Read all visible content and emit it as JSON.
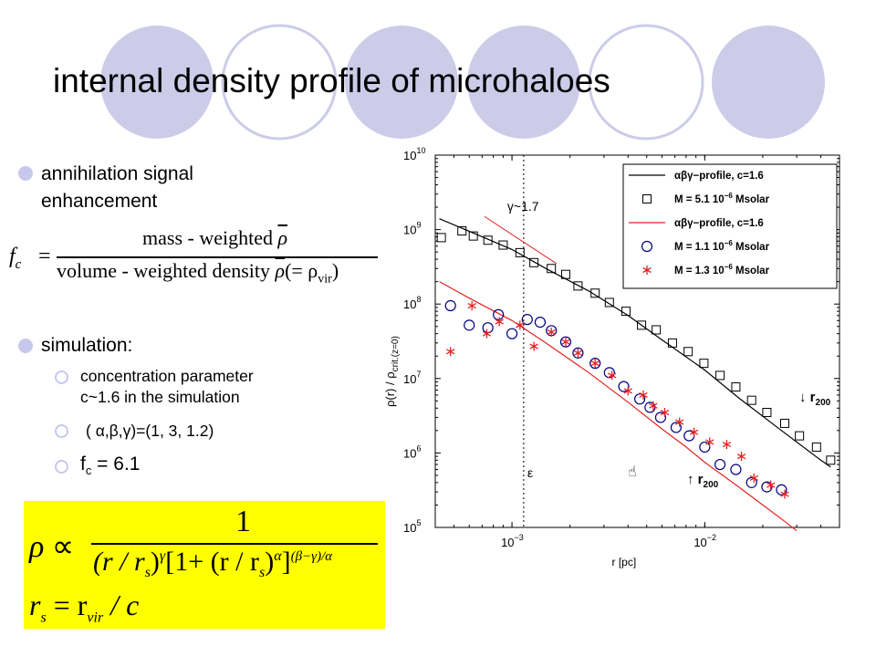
{
  "slide": {
    "title": "internal density profile of microhaloes",
    "bullets": {
      "annihilation_line1": "annihilation signal",
      "annihilation_line2": "enhancement",
      "simulation": "simulation:",
      "concentration_line1": "concentration parameter",
      "concentration_line2": "c~1.6 in the simulation",
      "alpha_beta_gamma": "( α,β,γ)=(1, 3, 1.2)",
      "fc_value_prefix": "f",
      "fc_value_sub": "c",
      "fc_value_rest": " = 6.1"
    },
    "fc_formula": {
      "lhs_main": "f",
      "lhs_sub": "c",
      "equals": "=",
      "numerator": "mass - weighted",
      "rho": "ρ",
      "denominator_text": "volume - weighted density",
      "denominator_paren": "(= ρ",
      "vir_sub": "vir",
      "close_paren": ")"
    },
    "profile_formula": {
      "rho": "ρ",
      "propto": "∝",
      "numerator": "1",
      "r_over_rs": "(r / r",
      "s_sub": "s",
      "close": ")",
      "gamma": "γ",
      "bracket": "[1+ (r / r",
      "alpha": "α",
      "close_bracket": "]",
      "exponent": "(β−γ)/α",
      "rs_line_lhs": "r",
      "rs_line_eq": " = r",
      "vir_sub": "vir",
      "rs_line_rest": " / c"
    },
    "colors": {
      "bullet_dot": "#c8c8ec",
      "deco_circle": "#cccce9",
      "highlight": "#ffff00",
      "red": "#e32222"
    }
  },
  "chart_data": {
    "type": "scatter",
    "xscale": "log",
    "yscale": "log",
    "xlabel": "r [pc]",
    "ylabel_main": "ρ(r) / ρ",
    "ylabel_sub": "crit.(z=0)",
    "xlim": [
      0.0004,
      0.05
    ],
    "ylim": [
      100000,
      10000000000
    ],
    "x_ticks": [
      {
        "base": "10",
        "exp": "−3",
        "value": 0.001
      },
      {
        "base": "10",
        "exp": "−2",
        "value": 0.01
      }
    ],
    "y_ticks": [
      {
        "base": "10",
        "exp": "10",
        "value": 10000000000
      },
      {
        "base": "10",
        "exp": "9",
        "value": 1000000000
      },
      {
        "base": "10",
        "exp": "8",
        "value": 100000000
      },
      {
        "base": "10",
        "exp": "7",
        "value": 10000000
      },
      {
        "base": "10",
        "exp": "6",
        "value": 1000000
      },
      {
        "base": "10",
        "exp": "5",
        "value": 100000
      }
    ],
    "grid": false,
    "legend": {
      "position": "top-right",
      "entries": [
        {
          "label": "αβγ−profile, c=1.6",
          "marker": "line",
          "color": "#000000"
        },
        {
          "label_prefix": "M = 5.1 10",
          "label_exp": "−6",
          "label_suffix": " Msolar",
          "marker": "square",
          "color": "#000000"
        },
        {
          "label": "αβγ−profile, c=1.6",
          "marker": "line",
          "color": "#e32222"
        },
        {
          "label_prefix": "M = 1.1 10",
          "label_exp": "−6",
          "label_suffix": " Msolar",
          "marker": "circle",
          "color": "#000080"
        },
        {
          "label_prefix": "M = 1.3 10",
          "label_exp": "−6",
          "label_suffix": " Msolar",
          "marker": "star",
          "color": "#e32222"
        }
      ]
    },
    "annotations": {
      "gamma_slope": "γ~1.7",
      "epsilon": "ε",
      "r200_prefix": "r",
      "r200_sub": "200",
      "arrow_down": "↓",
      "arrow_up": "↑",
      "epsilon_x": 0.00115,
      "slope_line": [
        [
          0.00072,
          1500000000
        ],
        [
          0.0017,
          350000000
        ]
      ]
    },
    "series": [
      {
        "name": "αβγ−profile, c=1.6",
        "kind": "line",
        "color": "#000000",
        "x": [
          0.00042,
          0.0006,
          0.001,
          0.0015,
          0.0025,
          0.004,
          0.006,
          0.01,
          0.015,
          0.025,
          0.04,
          0.045
        ],
        "y": [
          1400000000,
          950000000,
          540000000,
          300000000,
          150000000,
          70000000,
          33000000,
          13000000,
          5500000,
          2000000,
          800000,
          650000
        ]
      },
      {
        "name": "M = 5.1 10−6 Msolar",
        "kind": "marker",
        "marker": "square",
        "color": "#000000",
        "x": [
          0.00043,
          0.00055,
          0.00063,
          0.00075,
          0.0009,
          0.0011,
          0.0013,
          0.0016,
          0.0019,
          0.0022,
          0.0027,
          0.0032,
          0.0039,
          0.0047,
          0.0056,
          0.0068,
          0.0082,
          0.0099,
          0.012,
          0.0145,
          0.0175,
          0.021,
          0.026,
          0.031,
          0.038,
          0.045
        ],
        "y": [
          780000000,
          960000000,
          820000000,
          720000000,
          620000000,
          490000000,
          360000000,
          300000000,
          250000000,
          175000000,
          140000000,
          105000000,
          80000000,
          52000000,
          45000000,
          30000000,
          23000000,
          16000000,
          11000000,
          7700000,
          5100000,
          3500000,
          2500000,
          1700000,
          1200000,
          800000
        ]
      },
      {
        "name": "αβγ−profile, c=1.6",
        "kind": "line",
        "color": "#e32222",
        "x": [
          0.00042,
          0.0006,
          0.001,
          0.0015,
          0.0025,
          0.004,
          0.006,
          0.008,
          0.01,
          0.015,
          0.02,
          0.025,
          0.03
        ],
        "y": [
          200000000,
          120000000,
          60000000,
          30000000,
          12000000,
          4800000,
          2100000,
          1200000,
          750000,
          350000,
          200000,
          130000,
          90000
        ]
      },
      {
        "name": "M = 1.1 10−6 Msolar",
        "kind": "marker",
        "marker": "circle",
        "color": "#000080",
        "x": [
          0.00048,
          0.0006,
          0.00075,
          0.00085,
          0.001,
          0.0012,
          0.0014,
          0.0016,
          0.0019,
          0.0022,
          0.0027,
          0.0032,
          0.0038,
          0.0046,
          0.0052,
          0.0059,
          0.0071,
          0.0083,
          0.01,
          0.012,
          0.0145,
          0.0175,
          0.021,
          0.025
        ],
        "y": [
          95000000,
          52000000,
          48000000,
          72000000,
          40000000,
          62000000,
          57000000,
          44000000,
          31000000,
          22000000,
          16000000,
          12000000,
          7800000,
          5300000,
          4100000,
          3000000,
          2200000,
          1700000,
          1200000,
          700000,
          600000,
          400000,
          350000,
          320000
        ]
      },
      {
        "name": "M = 1.3 10−6 Msolar",
        "kind": "marker",
        "marker": "star",
        "color": "#e32222",
        "x": [
          0.00048,
          0.00062,
          0.00074,
          0.00086,
          0.0011,
          0.0013,
          0.0016,
          0.0019,
          0.0022,
          0.0027,
          0.0033,
          0.004,
          0.0048,
          0.0054,
          0.0062,
          0.0074,
          0.0088,
          0.0106,
          0.013,
          0.0155,
          0.018,
          0.022,
          0.026
        ],
        "y": [
          23000000,
          95000000,
          40000000,
          58000000,
          52000000,
          27000000,
          42000000,
          31000000,
          22000000,
          16000000,
          11000000,
          6800000,
          6000000,
          4300000,
          3500000,
          2600000,
          1900000,
          1400000,
          1300000,
          900000,
          460000,
          370000,
          280000
        ]
      }
    ]
  }
}
